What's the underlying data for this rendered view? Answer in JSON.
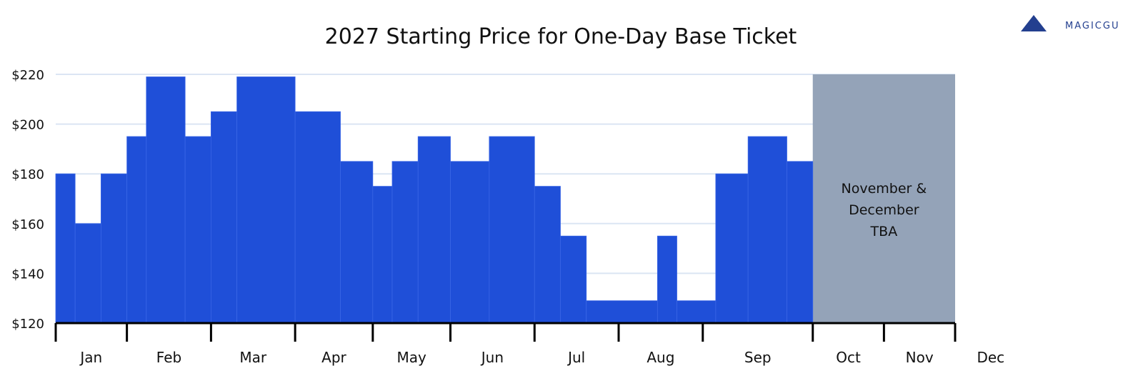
{
  "brand": {
    "text": "MAGICGU",
    "color": "#233f8f"
  },
  "colors": {
    "bar": "#1f4fd8",
    "bar_edge": "#3a66e6",
    "tba_fill": "#94a3b8",
    "grid": "#dbe5f3",
    "axis": "#000000"
  },
  "chart_data": {
    "type": "bar",
    "title": "2027 Starting Price for One-Day Base Ticket",
    "xlabel": "",
    "ylabel": "",
    "ylim": [
      120,
      220
    ],
    "yticks": [
      120,
      140,
      160,
      180,
      200,
      220
    ],
    "ytick_labels": [
      "$120",
      "$140",
      "$160",
      "$180",
      "$200",
      "$220"
    ],
    "grid": true,
    "x_domain": [
      0,
      12.5
    ],
    "months": [
      "Jan",
      "Feb",
      "Mar",
      "Apr",
      "May",
      "Jun",
      "Jul",
      "Aug",
      "Sep",
      "Oct",
      "Nov",
      "Dec"
    ],
    "bars": [
      {
        "start": 0.0,
        "end": 0.27,
        "value": 180
      },
      {
        "start": 0.27,
        "end": 0.63,
        "value": 160
      },
      {
        "start": 0.63,
        "end": 0.99,
        "value": 180
      },
      {
        "start": 0.99,
        "end": 1.26,
        "value": 195
      },
      {
        "start": 1.26,
        "end": 1.8,
        "value": 219
      },
      {
        "start": 1.8,
        "end": 2.16,
        "value": 195
      },
      {
        "start": 2.16,
        "end": 2.52,
        "value": 205
      },
      {
        "start": 2.52,
        "end": 3.33,
        "value": 219
      },
      {
        "start": 3.33,
        "end": 3.96,
        "value": 205
      },
      {
        "start": 3.96,
        "end": 4.41,
        "value": 185
      },
      {
        "start": 4.41,
        "end": 4.68,
        "value": 175
      },
      {
        "start": 4.68,
        "end": 5.04,
        "value": 185
      },
      {
        "start": 5.04,
        "end": 5.49,
        "value": 195
      },
      {
        "start": 5.49,
        "end": 6.03,
        "value": 185
      },
      {
        "start": 6.03,
        "end": 6.66,
        "value": 195
      },
      {
        "start": 6.66,
        "end": 7.02,
        "value": 175
      },
      {
        "start": 7.02,
        "end": 7.38,
        "value": 155
      },
      {
        "start": 7.38,
        "end": 8.37,
        "value": 129
      },
      {
        "start": 8.37,
        "end": 8.64,
        "value": 155
      },
      {
        "start": 8.64,
        "end": 9.18,
        "value": 129
      },
      {
        "start": 9.18,
        "end": 9.63,
        "value": 180
      },
      {
        "start": 9.63,
        "end": 10.17,
        "value": 195
      },
      {
        "start": 10.17,
        "end": 10.53,
        "value": 185
      }
    ],
    "tba_region": {
      "start": 10.53,
      "end": 12.51,
      "lines": [
        "November &",
        "December",
        "TBA"
      ]
    },
    "axis_ticks": [
      0,
      0.99,
      2.16,
      3.33,
      4.41,
      5.49,
      6.66,
      7.83,
      9.0,
      10.53,
      11.52,
      12.51
    ]
  }
}
